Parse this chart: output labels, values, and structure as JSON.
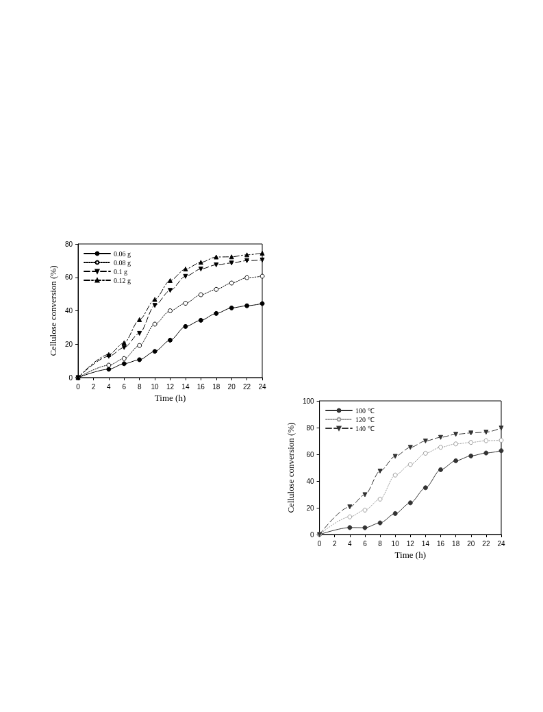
{
  "chart_data": [
    {
      "type": "line",
      "xlabel": "Time (h)",
      "ylabel": "Cellulose conversion (%)",
      "x": [
        0,
        4,
        6,
        8,
        10,
        12,
        14,
        16,
        18,
        20,
        22,
        24
      ],
      "xlim": [
        0,
        24
      ],
      "xticks": [
        0,
        2,
        4,
        6,
        8,
        10,
        12,
        14,
        16,
        18,
        20,
        22,
        24
      ],
      "ylim": [
        0,
        80
      ],
      "yticks": [
        0,
        20,
        40,
        60,
        80
      ],
      "grid": false,
      "legend": "top left",
      "series": [
        {
          "name": "0.06 g",
          "color": "#000000",
          "marker": "circle",
          "line_style": "solid",
          "values": [
            0,
            5,
            8.3,
            10.7,
            15.7,
            22.4,
            30.6,
            34.3,
            38.4,
            41.7,
            43,
            44.3
          ]
        },
        {
          "name": "0.08 g",
          "color": "#000000",
          "marker": "emptyCircle",
          "line_style": "dotted",
          "values": [
            0,
            7.4,
            11.4,
            19.2,
            32,
            40,
            44.5,
            49.6,
            52.8,
            56.6,
            59.8,
            60.7
          ]
        },
        {
          "name": "0.1 g",
          "color": "#000000",
          "marker": "triangle-down",
          "line_style": "dashed",
          "values": [
            0,
            12.7,
            18,
            26.5,
            43.2,
            52.2,
            60.6,
            65,
            67.5,
            68.6,
            70,
            70.4
          ]
        },
        {
          "name": "0.12 g",
          "color": "#000000",
          "marker": "triangle",
          "line_style": "dashdot",
          "values": [
            0,
            13.8,
            20.8,
            34.7,
            46.8,
            58.1,
            65,
            69,
            72.2,
            72.3,
            73.5,
            74.5
          ]
        }
      ]
    },
    {
      "type": "line",
      "xlabel": "Time (h)",
      "ylabel": "Cellulose conversion (%)",
      "x": [
        0,
        4,
        6,
        8,
        10,
        12,
        14,
        16,
        18,
        20,
        22,
        24
      ],
      "xlim": [
        0,
        24
      ],
      "xticks": [
        0,
        2,
        4,
        6,
        8,
        10,
        12,
        14,
        16,
        18,
        20,
        22,
        24
      ],
      "ylim": [
        0,
        100
      ],
      "yticks": [
        0,
        20,
        40,
        60,
        80,
        100
      ],
      "grid": false,
      "legend": "top left",
      "series": [
        {
          "name": "100 ℃",
          "color": "#333333",
          "marker": "circle",
          "line_style": "solid",
          "values": [
            0,
            5.2,
            5.1,
            8.7,
            15.7,
            23.7,
            35,
            48.5,
            55.2,
            58.8,
            61,
            62.7
          ]
        },
        {
          "name": "120 ℃",
          "color": "#999999",
          "marker": "emptyCircle",
          "line_style": "dotted",
          "values": [
            0,
            13.2,
            18.3,
            26.5,
            44.5,
            52.4,
            60.8,
            65.3,
            67.8,
            68.9,
            70.2,
            70.5
          ]
        },
        {
          "name": "140 ℃",
          "color": "#333333",
          "marker": "triangle-down",
          "line_style": "dashed",
          "values": [
            0,
            20.7,
            29.8,
            47.5,
            58.5,
            65.2,
            70,
            72.7,
            75,
            76,
            76.6,
            79.7
          ]
        }
      ]
    }
  ]
}
